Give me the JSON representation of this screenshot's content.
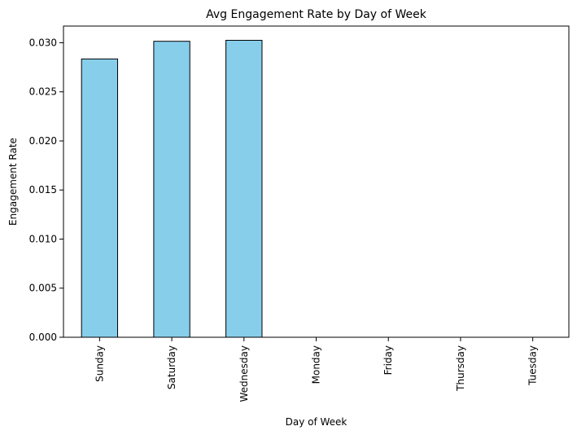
{
  "chart_data": {
    "type": "bar",
    "title": "Avg Engagement Rate by Day of Week",
    "xlabel": "Day of Week",
    "ylabel": "Engagement Rate",
    "categories": [
      "Sunday",
      "Saturday",
      "Wednesday",
      "Monday",
      "Friday",
      "Thursday",
      "Tuesday"
    ],
    "values": [
      0.02835,
      0.03015,
      0.03025,
      0,
      0,
      0,
      0
    ],
    "ylim": [
      0,
      0.0317
    ],
    "yticks": [
      "0.000",
      "0.005",
      "0.010",
      "0.015",
      "0.020",
      "0.025",
      "0.030"
    ],
    "ytick_values": [
      0,
      0.005,
      0.01,
      0.015,
      0.02,
      0.025,
      0.03
    ],
    "colors": {
      "bar_fill": "#87CEEB",
      "bar_edge": "#000000"
    },
    "grid": false,
    "legend": "none"
  }
}
